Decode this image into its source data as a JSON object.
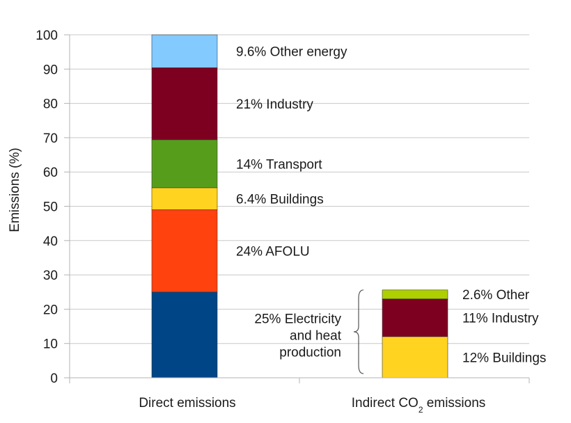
{
  "chart_data": {
    "type": "bar",
    "stacked": true,
    "ylabel": "Emissions (%)",
    "ylim": [
      0,
      100
    ],
    "yticks": [
      0,
      10,
      20,
      30,
      40,
      50,
      60,
      70,
      80,
      90,
      100
    ],
    "grid": true,
    "colors": {
      "electricity": "#004586",
      "afolu": "#ff420e",
      "buildings": "#ffd320",
      "transport": "#579d1c",
      "industry": "#7e0021",
      "other_energy": "#83caff",
      "other_indirect": "#aecf00"
    },
    "bars": [
      {
        "category": "Direct emissions",
        "segments": [
          {
            "key": "electricity",
            "value": 25,
            "label": "25%  Electricity and heat production",
            "label_lines": [
              "25%  Electricity",
              "and heat",
              "production"
            ]
          },
          {
            "key": "afolu",
            "value": 24,
            "label": "24% AFOLU",
            "label_lines": [
              "24% AFOLU"
            ]
          },
          {
            "key": "buildings",
            "value": 6.4,
            "label": "6.4% Buildings",
            "label_lines": [
              "6.4% Buildings"
            ]
          },
          {
            "key": "transport",
            "value": 14,
            "label": "14% Transport",
            "label_lines": [
              "14% Transport"
            ]
          },
          {
            "key": "industry",
            "value": 21,
            "label": "21% Industry",
            "label_lines": [
              "21% Industry"
            ]
          },
          {
            "key": "other_energy",
            "value": 9.6,
            "label": "9.6% Other energy",
            "label_lines": [
              "9.6% Other energy"
            ]
          }
        ]
      },
      {
        "category_main": "Indirect CO",
        "category_sub": "2",
        "category_tail": " emissions",
        "segments": [
          {
            "key": "buildings",
            "value": 12,
            "label": "12%  Buildings",
            "label_lines": [
              "12%  Buildings"
            ]
          },
          {
            "key": "industry",
            "value": 11,
            "label": "11%  Industry",
            "label_lines": [
              "11%  Industry"
            ]
          },
          {
            "key": "other_indirect",
            "value": 2.6,
            "label": "2.6%  Other",
            "label_lines": [
              "2.6%  Other"
            ]
          }
        ]
      }
    ]
  }
}
